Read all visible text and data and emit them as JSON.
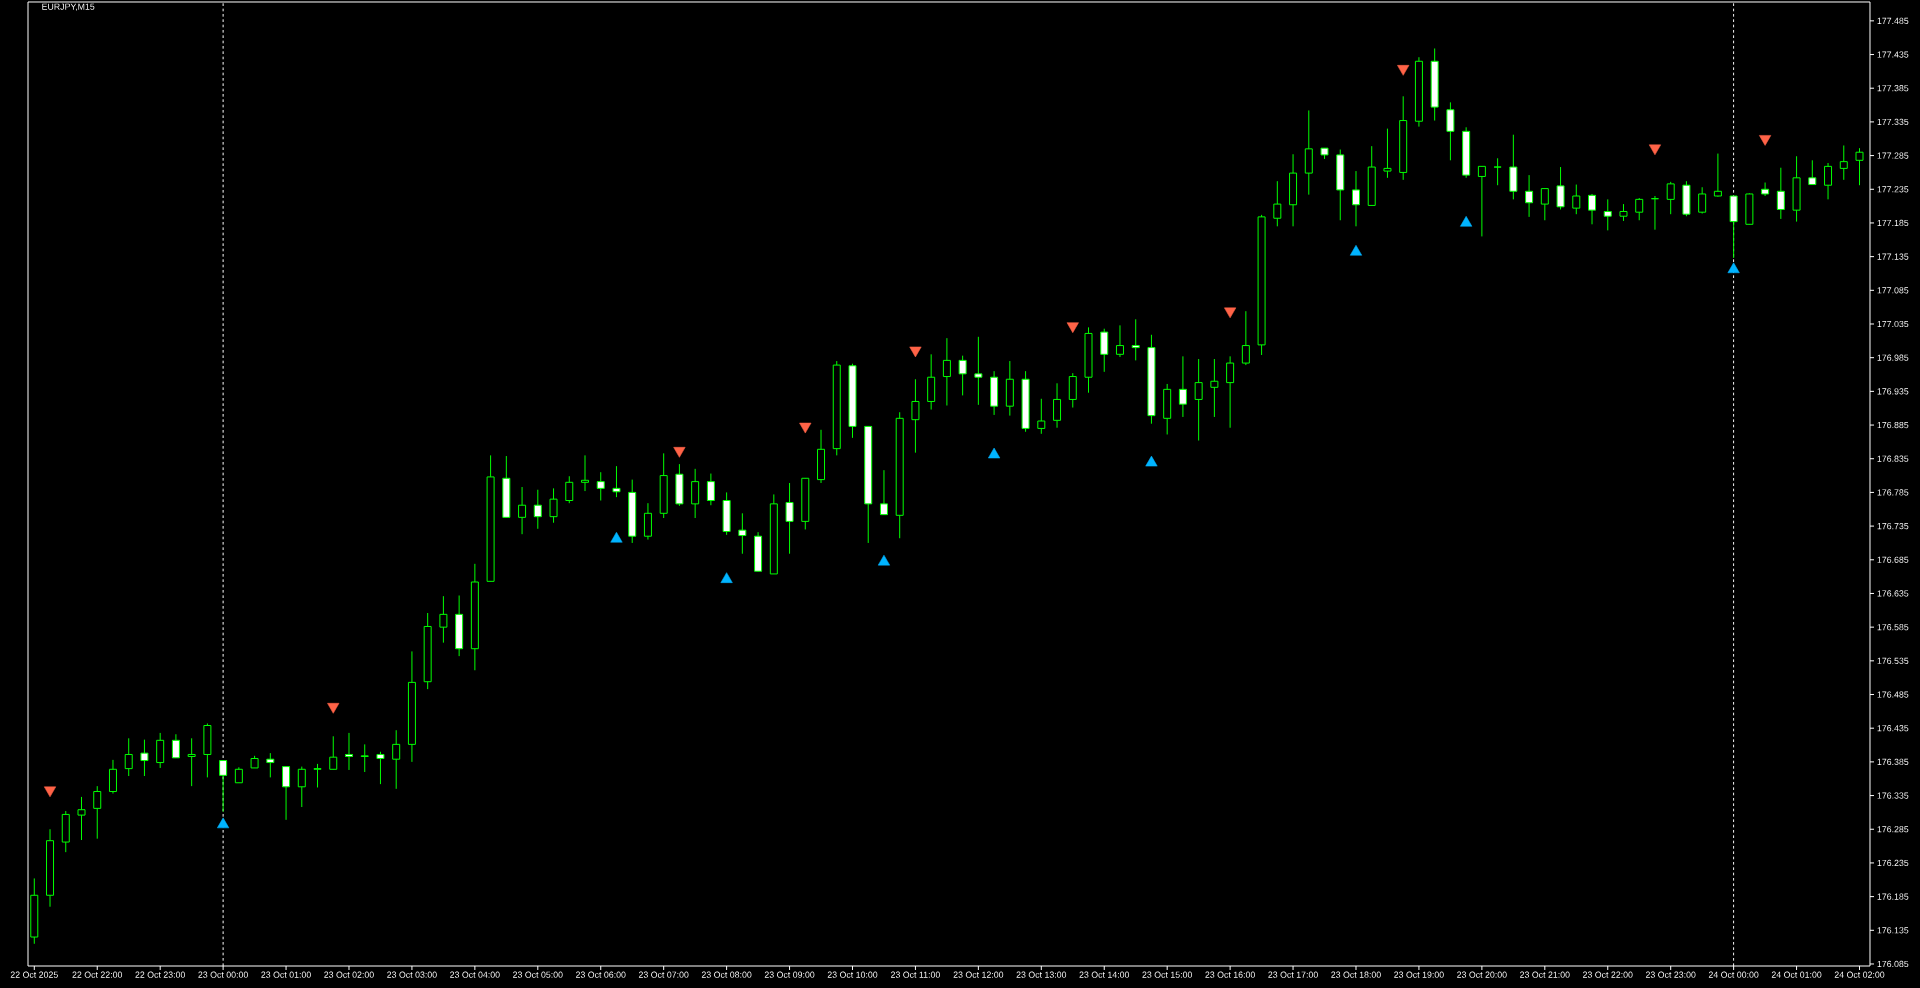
{
  "chart_data": {
    "type": "candlestick",
    "title": "EURJPY,M15",
    "x": [
      "2025-10-22T21:00",
      "2025-10-22T21:15",
      "2025-10-22T21:30",
      "2025-10-22T21:45",
      "2025-10-22T22:00",
      "2025-10-22T22:15",
      "2025-10-22T22:30",
      "2025-10-22T22:45",
      "2025-10-22T23:00",
      "2025-10-22T23:15",
      "2025-10-22T23:30",
      "2025-10-22T23:45",
      "2025-10-23T00:00",
      "2025-10-23T00:15",
      "2025-10-23T00:30",
      "2025-10-23T00:45",
      "2025-10-23T01:00",
      "2025-10-23T01:15",
      "2025-10-23T01:30",
      "2025-10-23T01:45",
      "2025-10-23T02:00",
      "2025-10-23T02:15",
      "2025-10-23T02:30",
      "2025-10-23T02:45",
      "2025-10-23T03:00",
      "2025-10-23T03:15",
      "2025-10-23T03:30",
      "2025-10-23T03:45",
      "2025-10-23T04:00",
      "2025-10-23T04:15",
      "2025-10-23T04:30",
      "2025-10-23T04:45",
      "2025-10-23T05:00",
      "2025-10-23T05:15",
      "2025-10-23T05:30",
      "2025-10-23T05:45",
      "2025-10-23T06:00",
      "2025-10-23T06:15",
      "2025-10-23T06:30",
      "2025-10-23T06:45",
      "2025-10-23T07:00",
      "2025-10-23T07:15",
      "2025-10-23T07:30",
      "2025-10-23T07:45",
      "2025-10-23T08:00",
      "2025-10-23T08:15",
      "2025-10-23T08:30",
      "2025-10-23T08:45",
      "2025-10-23T09:00",
      "2025-10-23T09:15",
      "2025-10-23T09:30",
      "2025-10-23T09:45",
      "2025-10-23T10:00",
      "2025-10-23T10:15",
      "2025-10-23T10:30",
      "2025-10-23T10:45",
      "2025-10-23T11:00",
      "2025-10-23T11:15",
      "2025-10-23T11:30",
      "2025-10-23T11:45",
      "2025-10-23T12:00",
      "2025-10-23T12:15",
      "2025-10-23T12:30",
      "2025-10-23T12:45",
      "2025-10-23T13:00",
      "2025-10-23T13:15",
      "2025-10-23T13:30",
      "2025-10-23T13:45",
      "2025-10-23T14:00",
      "2025-10-23T14:15",
      "2025-10-23T14:30",
      "2025-10-23T14:45",
      "2025-10-23T15:00",
      "2025-10-23T15:15",
      "2025-10-23T15:30",
      "2025-10-23T15:45",
      "2025-10-23T16:00",
      "2025-10-23T16:15",
      "2025-10-23T16:30",
      "2025-10-23T16:45",
      "2025-10-23T17:00",
      "2025-10-23T17:15",
      "2025-10-23T17:30",
      "2025-10-23T17:45",
      "2025-10-23T18:00",
      "2025-10-23T18:15",
      "2025-10-23T18:30",
      "2025-10-23T18:45",
      "2025-10-23T19:00",
      "2025-10-23T19:15",
      "2025-10-23T19:30",
      "2025-10-23T19:45",
      "2025-10-23T20:00",
      "2025-10-23T20:15",
      "2025-10-23T20:30",
      "2025-10-23T20:45",
      "2025-10-23T21:00",
      "2025-10-23T21:15",
      "2025-10-23T21:30",
      "2025-10-23T21:45",
      "2025-10-23T22:00",
      "2025-10-23T22:15",
      "2025-10-23T22:30",
      "2025-10-23T22:45",
      "2025-10-23T23:00",
      "2025-10-23T23:15",
      "2025-10-23T23:30",
      "2025-10-23T23:45",
      "2025-10-24T00:00",
      "2025-10-24T00:15",
      "2025-10-24T00:30",
      "2025-10-24T00:45",
      "2025-10-24T01:00",
      "2025-10-24T01:15",
      "2025-10-24T01:30",
      "2025-10-24T01:45",
      "2025-10-24T02:00"
    ],
    "series": [
      {
        "color": "#00ff00",
        "ohlc": [
          [
            176.125,
            176.212,
            176.115,
            176.187
          ],
          [
            176.187,
            176.285,
            176.17,
            176.268
          ],
          [
            176.266,
            176.312,
            176.251,
            176.307
          ],
          [
            176.306,
            176.333,
            176.269,
            176.314
          ],
          [
            176.316,
            176.349,
            176.271,
            176.341
          ],
          [
            176.341,
            176.388,
            176.338,
            176.374
          ],
          [
            176.375,
            176.42,
            176.364,
            176.396
          ],
          [
            176.398,
            176.418,
            176.364,
            176.387
          ],
          [
            176.384,
            176.428,
            176.376,
            176.417
          ],
          [
            176.417,
            176.426,
            176.391,
            176.391
          ],
          [
            176.393,
            176.42,
            176.349,
            176.396
          ],
          [
            176.396,
            176.442,
            176.362,
            176.439
          ],
          [
            176.387,
            176.387,
            176.311,
            176.365
          ],
          [
            176.354,
            176.377,
            176.354,
            176.374
          ],
          [
            176.376,
            176.394,
            176.376,
            176.39
          ],
          [
            176.389,
            176.398,
            176.362,
            176.384
          ],
          [
            176.378,
            176.378,
            176.299,
            176.348
          ],
          [
            176.348,
            176.378,
            176.318,
            176.374
          ],
          [
            176.374,
            176.382,
            176.347,
            176.375
          ],
          [
            176.374,
            176.423,
            176.374,
            176.392
          ],
          [
            176.396,
            176.428,
            176.373,
            176.393
          ],
          [
            176.393,
            176.411,
            176.37,
            176.394
          ],
          [
            176.396,
            176.4,
            176.352,
            176.39
          ],
          [
            176.389,
            176.432,
            176.345,
            176.411
          ],
          [
            176.411,
            176.549,
            176.385,
            176.503
          ],
          [
            176.504,
            176.606,
            176.493,
            176.586
          ],
          [
            176.585,
            176.631,
            176.562,
            176.604
          ],
          [
            176.604,
            176.632,
            176.542,
            176.553
          ],
          [
            176.553,
            176.679,
            176.521,
            176.652
          ],
          [
            176.653,
            176.84,
            176.653,
            176.808
          ],
          [
            176.806,
            176.839,
            176.748,
            176.748
          ],
          [
            176.748,
            176.793,
            176.723,
            176.766
          ],
          [
            176.766,
            176.789,
            176.731,
            176.749
          ],
          [
            176.749,
            176.791,
            176.74,
            176.775
          ],
          [
            176.773,
            176.809,
            176.769,
            176.8
          ],
          [
            176.8,
            176.84,
            176.787,
            176.803
          ],
          [
            176.801,
            176.815,
            176.773,
            176.791
          ],
          [
            176.791,
            176.824,
            176.778,
            176.786
          ],
          [
            176.785,
            176.804,
            176.71,
            176.72
          ],
          [
            176.72,
            176.769,
            176.715,
            176.754
          ],
          [
            176.754,
            176.843,
            176.747,
            176.81
          ],
          [
            176.812,
            176.827,
            176.765,
            176.768
          ],
          [
            176.768,
            176.82,
            176.747,
            176.801
          ],
          [
            176.801,
            176.813,
            176.766,
            176.773
          ],
          [
            176.773,
            176.785,
            176.722,
            176.727
          ],
          [
            176.729,
            176.754,
            176.694,
            176.721
          ],
          [
            176.72,
            176.726,
            176.668,
            176.668
          ],
          [
            176.664,
            176.782,
            176.664,
            176.768
          ],
          [
            176.77,
            176.799,
            176.694,
            176.742
          ],
          [
            176.742,
            176.806,
            176.73,
            176.806
          ],
          [
            176.804,
            176.878,
            176.799,
            176.849
          ],
          [
            176.85,
            176.98,
            176.84,
            176.974
          ],
          [
            176.973,
            176.976,
            176.866,
            176.883
          ],
          [
            176.883,
            176.883,
            176.71,
            176.768
          ],
          [
            176.768,
            176.818,
            176.752,
            176.752
          ],
          [
            176.751,
            176.904,
            176.717,
            176.895
          ],
          [
            176.893,
            176.953,
            176.844,
            176.92
          ],
          [
            176.92,
            176.99,
            176.908,
            176.956
          ],
          [
            176.957,
            177.014,
            176.914,
            176.981
          ],
          [
            176.981,
            176.988,
            176.929,
            176.961
          ],
          [
            176.961,
            177.016,
            176.915,
            176.956
          ],
          [
            176.956,
            176.965,
            176.9,
            176.913
          ],
          [
            176.913,
            176.98,
            176.899,
            176.953
          ],
          [
            176.953,
            176.965,
            176.875,
            176.88
          ],
          [
            176.88,
            176.924,
            176.872,
            176.891
          ],
          [
            176.892,
            176.947,
            176.881,
            176.923
          ],
          [
            176.923,
            176.962,
            176.911,
            176.957
          ],
          [
            176.956,
            177.03,
            176.933,
            177.021
          ],
          [
            177.023,
            177.028,
            176.964,
            176.99
          ],
          [
            176.99,
            177.033,
            176.986,
            177.003
          ],
          [
            177.003,
            177.042,
            176.981,
            177.0
          ],
          [
            177.0,
            177.019,
            176.887,
            176.899
          ],
          [
            176.895,
            176.946,
            176.871,
            176.938
          ],
          [
            176.938,
            176.987,
            176.897,
            176.916
          ],
          [
            176.923,
            176.983,
            176.862,
            176.948
          ],
          [
            176.941,
            176.983,
            176.897,
            176.95
          ],
          [
            176.948,
            176.987,
            176.881,
            176.977
          ],
          [
            176.977,
            177.054,
            176.974,
            177.003
          ],
          [
            177.004,
            177.197,
            176.989,
            177.194
          ],
          [
            177.192,
            177.247,
            177.18,
            177.213
          ],
          [
            177.212,
            177.287,
            177.18,
            177.259
          ],
          [
            177.259,
            177.352,
            177.227,
            177.295
          ],
          [
            177.296,
            177.296,
            177.28,
            177.286
          ],
          [
            177.286,
            177.294,
            177.189,
            177.234
          ],
          [
            177.234,
            177.262,
            177.18,
            177.212
          ],
          [
            177.211,
            177.299,
            177.211,
            177.268
          ],
          [
            177.262,
            177.325,
            177.252,
            177.266
          ],
          [
            177.26,
            177.373,
            177.249,
            177.337
          ],
          [
            177.336,
            177.431,
            177.328,
            177.425
          ],
          [
            177.425,
            177.444,
            177.337,
            177.357
          ],
          [
            177.353,
            177.364,
            177.278,
            177.321
          ],
          [
            177.321,
            177.327,
            177.252,
            177.256
          ],
          [
            177.254,
            177.269,
            177.165,
            177.269
          ],
          [
            177.268,
            177.281,
            177.241,
            177.268
          ],
          [
            177.268,
            177.316,
            177.22,
            177.232
          ],
          [
            177.232,
            177.256,
            177.194,
            177.215
          ],
          [
            177.213,
            177.236,
            177.189,
            177.236
          ],
          [
            177.24,
            177.268,
            177.205,
            177.209
          ],
          [
            177.207,
            177.242,
            177.198,
            177.225
          ],
          [
            177.226,
            177.228,
            177.183,
            177.204
          ],
          [
            177.202,
            177.22,
            177.174,
            177.195
          ],
          [
            177.195,
            177.213,
            177.188,
            177.202
          ],
          [
            177.201,
            177.222,
            177.189,
            177.22
          ],
          [
            177.221,
            177.225,
            177.175,
            177.221
          ],
          [
            177.22,
            177.246,
            177.198,
            177.243
          ],
          [
            177.241,
            177.247,
            177.195,
            177.198
          ],
          [
            177.201,
            177.238,
            177.199,
            177.228
          ],
          [
            177.225,
            177.288,
            177.224,
            177.232
          ],
          [
            177.225,
            177.225,
            177.133,
            177.187
          ],
          [
            177.183,
            177.229,
            177.183,
            177.228
          ],
          [
            177.235,
            177.245,
            177.225,
            177.228
          ],
          [
            177.232,
            177.267,
            177.191,
            177.205
          ],
          [
            177.204,
            177.284,
            177.187,
            177.252
          ],
          [
            177.252,
            177.278,
            177.242,
            177.242
          ],
          [
            177.241,
            177.274,
            177.22,
            177.269
          ],
          [
            177.266,
            177.3,
            177.249,
            177.276
          ],
          [
            177.278,
            177.296,
            177.241,
            177.29
          ]
        ]
      },
      {
        "type": "scatter",
        "color": "#ff6347",
        "marker": "triangle",
        "x": [
          "2025-10-22T21:15",
          "2025-10-23T01:45",
          "2025-10-23T07:15",
          "2025-10-23T09:15",
          "2025-10-23T11:00",
          "2025-10-23T13:30",
          "2025-10-23T16:00",
          "2025-10-23T18:45",
          "2025-10-23T22:45",
          "2025-10-24T00:30"
        ],
        "values": [
          176.343,
          176.467,
          176.847,
          176.883,
          176.996,
          177.032,
          177.054,
          177.414,
          177.296,
          177.31
        ]
      },
      {
        "type": "scatter",
        "color": "#00b4ff",
        "marker": "triangle",
        "x": [
          "2025-10-23T00:00",
          "2025-10-23T06:15",
          "2025-10-23T08:00",
          "2025-10-23T10:30",
          "2025-10-23T12:15",
          "2025-10-23T14:45",
          "2025-10-23T18:00",
          "2025-10-23T19:45",
          "2025-10-24T00:00"
        ],
        "values": [
          176.292,
          176.716,
          176.656,
          176.682,
          176.841,
          176.829,
          177.142,
          177.185,
          177.116
        ]
      }
    ],
    "ref_lines": [
      {
        "axis": "x",
        "value": "2025-10-23T00:00",
        "color": "#ffffff",
        "line_style": "dashed"
      },
      {
        "axis": "x",
        "value": "2025-10-24T00:00",
        "color": "#ffffff",
        "line_style": "dashed"
      }
    ],
    "xlim": [
      "2025-10-22T20:54",
      "2025-10-24T02:10"
    ],
    "xticks": [
      {
        "value": "2025-10-22T21:00",
        "label": "22 Oct 2025"
      },
      {
        "value": "2025-10-22T22:00",
        "label": "22 Oct 22:00"
      },
      {
        "value": "2025-10-22T23:00",
        "label": "22 Oct 23:00"
      },
      {
        "value": "2025-10-23T00:00",
        "label": "23 Oct 00:00"
      },
      {
        "value": "2025-10-23T01:00",
        "label": "23 Oct 01:00"
      },
      {
        "value": "2025-10-23T02:00",
        "label": "23 Oct 02:00"
      },
      {
        "value": "2025-10-23T03:00",
        "label": "23 Oct 03:00"
      },
      {
        "value": "2025-10-23T04:00",
        "label": "23 Oct 04:00"
      },
      {
        "value": "2025-10-23T05:00",
        "label": "23 Oct 05:00"
      },
      {
        "value": "2025-10-23T06:00",
        "label": "23 Oct 06:00"
      },
      {
        "value": "2025-10-23T07:00",
        "label": "23 Oct 07:00"
      },
      {
        "value": "2025-10-23T08:00",
        "label": "23 Oct 08:00"
      },
      {
        "value": "2025-10-23T09:00",
        "label": "23 Oct 09:00"
      },
      {
        "value": "2025-10-23T10:00",
        "label": "23 Oct 10:00"
      },
      {
        "value": "2025-10-23T11:00",
        "label": "23 Oct 11:00"
      },
      {
        "value": "2025-10-23T12:00",
        "label": "23 Oct 12:00"
      },
      {
        "value": "2025-10-23T13:00",
        "label": "23 Oct 13:00"
      },
      {
        "value": "2025-10-23T14:00",
        "label": "23 Oct 14:00"
      },
      {
        "value": "2025-10-23T15:00",
        "label": "23 Oct 15:00"
      },
      {
        "value": "2025-10-23T16:00",
        "label": "23 Oct 16:00"
      },
      {
        "value": "2025-10-23T17:00",
        "label": "23 Oct 17:00"
      },
      {
        "value": "2025-10-23T18:00",
        "label": "23 Oct 18:00"
      },
      {
        "value": "2025-10-23T19:00",
        "label": "23 Oct 19:00"
      },
      {
        "value": "2025-10-23T20:00",
        "label": "23 Oct 20:00"
      },
      {
        "value": "2025-10-23T21:00",
        "label": "23 Oct 21:00"
      },
      {
        "value": "2025-10-23T22:00",
        "label": "23 Oct 22:00"
      },
      {
        "value": "2025-10-23T23:00",
        "label": "23 Oct 23:00"
      },
      {
        "value": "2025-10-24T00:00",
        "label": "24 Oct 00:00"
      },
      {
        "value": "2025-10-24T01:00",
        "label": "24 Oct 01:00"
      },
      {
        "value": "2025-10-24T02:00",
        "label": "24 Oct 02:00"
      }
    ],
    "ylim": [
      176.082,
      177.513
    ],
    "yticks": [
      176.085,
      176.135,
      176.185,
      176.235,
      176.285,
      176.335,
      176.385,
      176.435,
      176.485,
      176.535,
      176.585,
      176.635,
      176.685,
      176.735,
      176.785,
      176.835,
      176.885,
      176.935,
      176.985,
      177.035,
      177.085,
      177.135,
      177.185,
      177.235,
      177.285,
      177.335,
      177.385,
      177.435,
      177.485
    ]
  }
}
